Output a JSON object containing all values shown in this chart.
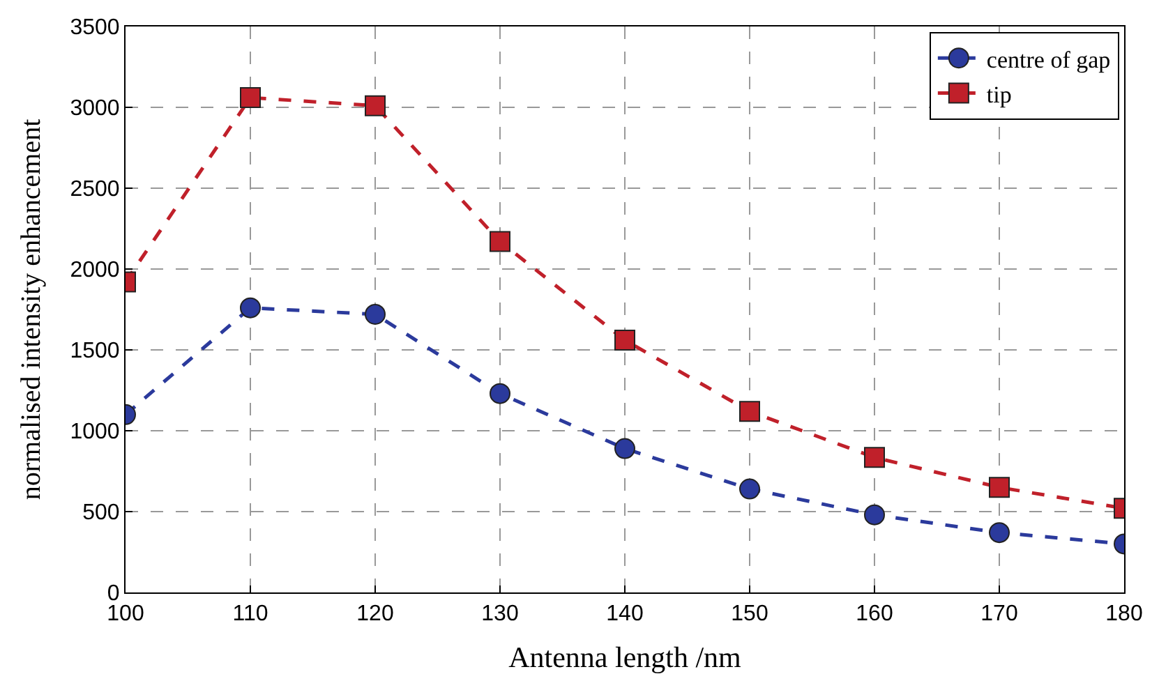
{
  "chart_data": {
    "type": "line",
    "xlabel": "Antenna length /nm",
    "ylabel": "normalised intensity enhancement",
    "x": [
      100,
      110,
      120,
      130,
      140,
      150,
      160,
      170,
      180
    ],
    "series": [
      {
        "name": "centre of gap",
        "color": "#2b3a9c",
        "marker": "circle",
        "values": [
          1100,
          1760,
          1720,
          1230,
          890,
          640,
          480,
          370,
          300
        ]
      },
      {
        "name": "tip",
        "color": "#c0202a",
        "marker": "square",
        "values": [
          1920,
          3060,
          3010,
          2170,
          1560,
          1120,
          835,
          650,
          520
        ]
      }
    ],
    "xlim": [
      100,
      180
    ],
    "xticks": [
      100,
      110,
      120,
      130,
      140,
      150,
      160,
      170,
      180
    ],
    "ylim": [
      0,
      3500
    ],
    "yticks": [
      0,
      500,
      1000,
      1500,
      2000,
      2500,
      3000,
      3500
    ],
    "grid": true,
    "legend": "top right",
    "line_style": "dashed"
  }
}
